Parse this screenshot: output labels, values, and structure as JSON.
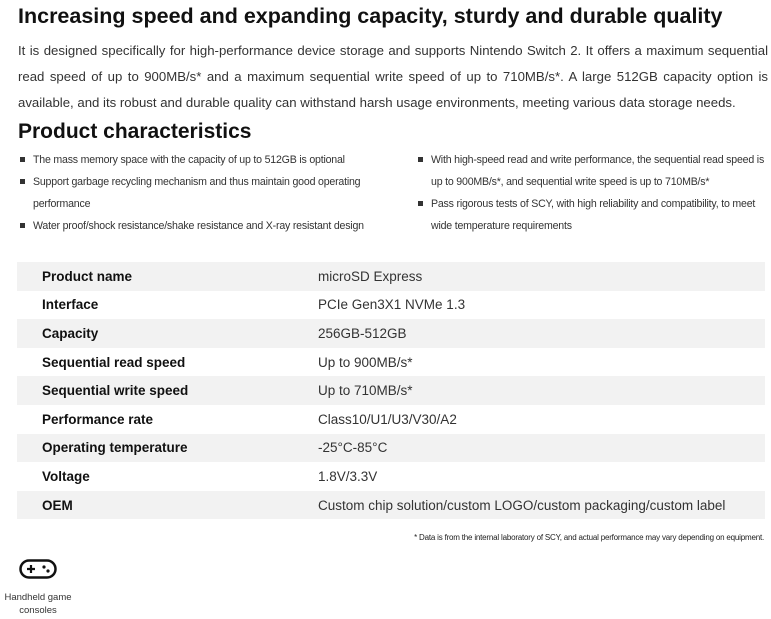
{
  "heading": "Increasing speed and expanding capacity, sturdy and durable quality",
  "intro": "It is designed specifically for high-performance device storage and supports Nintendo Switch 2. It offers a maximum sequential read speed of up to 900MB/s* and a maximum sequential write speed of up to 710MB/s*. A large 512GB capacity option is available, and its robust and durable quality can withstand harsh usage environments, meeting various data storage needs.",
  "characteristics": {
    "title": "Product characteristics",
    "left": [
      "The mass memory space with the capacity of up to 512GB is optional",
      "Support garbage recycling mechanism and thus maintain good operating performance",
      "Water proof/shock resistance/shake resistance and X-ray resistant design"
    ],
    "right": [
      "With high-speed read and write performance, the sequential read speed is up to 900MB/s*, and sequential write speed is up to 710MB/s*",
      "Pass rigorous tests of SCY, with high reliability and compatibility, to meet wide temperature requirements"
    ]
  },
  "specs": [
    {
      "label": "Product name",
      "value": "microSD Express"
    },
    {
      "label": "Interface",
      "value": "PCIe Gen3X1 NVMe 1.3"
    },
    {
      "label": "Capacity",
      "value": "256GB-512GB"
    },
    {
      "label": "Sequential read speed",
      "value": "Up to 900MB/s*"
    },
    {
      "label": "Sequential write speed",
      "value": "Up to 710MB/s*"
    },
    {
      "label": "Performance rate",
      "value": "Class10/U1/U3/V30/A2"
    },
    {
      "label": "Operating temperature",
      "value": "-25°C-85°C"
    },
    {
      "label": "Voltage",
      "value": "1.8V/3.3V"
    },
    {
      "label": "OEM",
      "value": "Custom chip solution/custom LOGO/custom packaging/custom label"
    }
  ],
  "footnote": "* Data is from the internal laboratory of SCY, and actual performance may vary depending on equipment.",
  "application": {
    "icon": "gamepad-icon",
    "label": "Handheld game consoles"
  }
}
